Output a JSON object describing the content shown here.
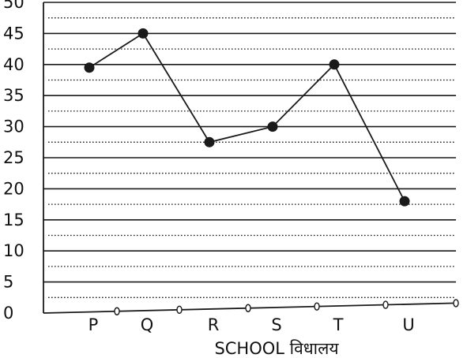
{
  "chart_data": {
    "type": "line",
    "categories": [
      "P",
      "Q",
      "R",
      "S",
      "T",
      "U"
    ],
    "values": [
      39.5,
      45,
      27.5,
      30,
      40,
      18
    ],
    "xlabel": "SCHOOL विधालय",
    "ylabel": "",
    "ylim": [
      0,
      50
    ],
    "yticks": [
      "0",
      "5",
      "10",
      "15",
      "20",
      "25",
      "30",
      "35",
      "40",
      "45",
      "50"
    ],
    "grid": {
      "solid_every": 5,
      "dotted_offset": 2.5
    },
    "colors": {
      "line": "#1a1a1a",
      "marker": "#1a1a1a",
      "grid": "#1a1a1a"
    }
  }
}
